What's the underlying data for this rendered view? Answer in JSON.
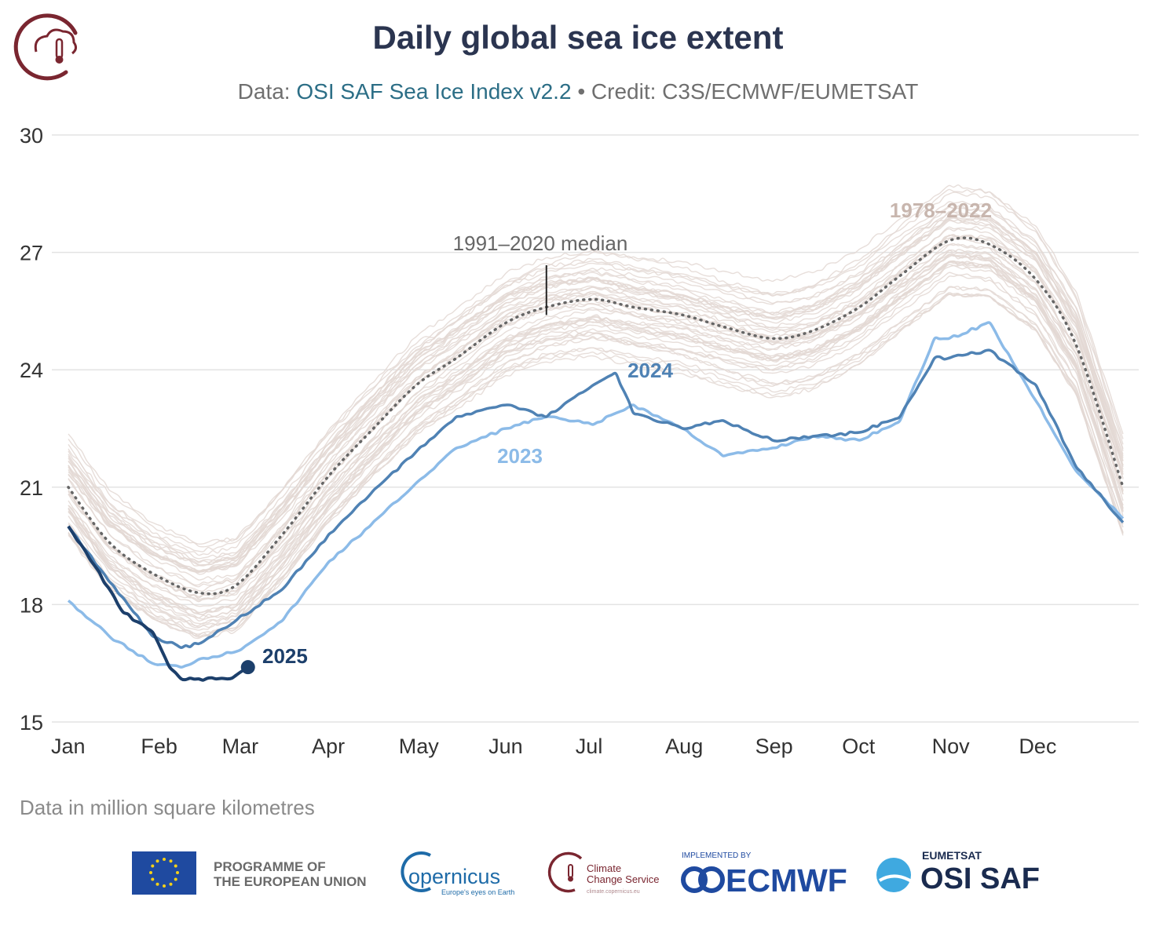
{
  "chart_data": {
    "type": "line",
    "title": "Daily global sea ice extent",
    "subtitle_prefix": "Data: ",
    "subtitle_source": "OSI SAF Sea Ice Index v2.2",
    "subtitle_sep": " • ",
    "subtitle_credit": "Credit: C3S/ECMWF/EUMETSAT",
    "note": "Data in million square kilometres",
    "ylim": [
      15,
      30
    ],
    "yticks": [
      "15",
      "18",
      "21",
      "24",
      "27",
      "30"
    ],
    "months": [
      "Jan",
      "Feb",
      "Mar",
      "Apr",
      "May",
      "Jun",
      "Jul",
      "Aug",
      "Sep",
      "Oct",
      "Nov",
      "Dec"
    ],
    "grid": true,
    "labels": {
      "range": "1978–2022",
      "median": "1991–2020 median",
      "y2024": "2024",
      "y2023": "2023",
      "y2025": "2025"
    },
    "colors": {
      "range": "#e3d8d4",
      "median": "#666666",
      "y2023": "#8cbbe8",
      "y2024": "#4f82b4",
      "y2025": "#1c3f6b",
      "range_label": "#c8b6ae",
      "grid": "#e3e3e3"
    },
    "series": [
      {
        "name": "1991–2020 median",
        "x": [
          1,
          15,
          30,
          46,
          59,
          75,
          91,
          105,
          121,
          135,
          152,
          166,
          182,
          196,
          213,
          227,
          244,
          258,
          274,
          288,
          305,
          319,
          335,
          349,
          365
        ],
        "values": [
          21.0,
          19.6,
          18.8,
          18.3,
          18.5,
          19.8,
          21.3,
          22.4,
          23.6,
          24.3,
          25.2,
          25.6,
          25.8,
          25.6,
          25.4,
          25.1,
          24.8,
          25.0,
          25.6,
          26.4,
          27.3,
          27.2,
          26.3,
          24.6,
          21.0
        ]
      },
      {
        "name": "2024",
        "x": [
          1,
          15,
          30,
          40,
          46,
          59,
          75,
          91,
          105,
          121,
          135,
          152,
          166,
          182,
          190,
          196,
          213,
          227,
          244,
          258,
          274,
          288,
          300,
          305,
          319,
          335,
          349,
          365
        ],
        "values": [
          20.0,
          18.6,
          17.2,
          16.9,
          17.0,
          17.6,
          18.4,
          19.8,
          20.8,
          21.9,
          22.8,
          23.1,
          22.8,
          23.6,
          23.9,
          22.9,
          22.5,
          22.7,
          22.2,
          22.3,
          22.4,
          22.8,
          24.3,
          24.3,
          24.5,
          23.6,
          21.5,
          20.1
        ]
      },
      {
        "name": "2023",
        "x": [
          1,
          15,
          30,
          40,
          46,
          59,
          75,
          91,
          105,
          121,
          135,
          152,
          166,
          182,
          196,
          213,
          227,
          244,
          258,
          274,
          288,
          300,
          305,
          319,
          335,
          349,
          365
        ],
        "values": [
          18.1,
          17.2,
          16.5,
          16.4,
          16.6,
          16.8,
          17.6,
          19.1,
          20.0,
          21.1,
          22.0,
          22.5,
          22.8,
          22.6,
          23.1,
          22.5,
          21.8,
          22.0,
          22.3,
          22.2,
          22.7,
          24.8,
          24.8,
          25.2,
          23.2,
          21.4,
          20.2
        ]
      },
      {
        "name": "2025",
        "x": [
          1,
          10,
          20,
          30,
          36,
          40,
          46,
          52,
          56,
          59,
          63
        ],
        "values": [
          20.0,
          19.0,
          17.8,
          17.3,
          16.4,
          16.1,
          16.1,
          16.1,
          16.1,
          16.2,
          16.4
        ]
      }
    ]
  },
  "footer": {
    "eu_line1": "PROGRAMME OF",
    "eu_line2": "THE EUROPEAN UNION",
    "copernicus": "opernicus",
    "copernicus_c": "C",
    "copernicus_tag": "Europe's eyes on Earth",
    "c3s_line1": "Climate",
    "c3s_line2": "Change Service",
    "c3s_url": "climate.copernicus.eu",
    "ecmwf_small": "IMPLEMENTED BY",
    "ecmwf": "ECMWF",
    "eumetsat": "EUMETSAT",
    "osisaf": "OSI SAF"
  }
}
